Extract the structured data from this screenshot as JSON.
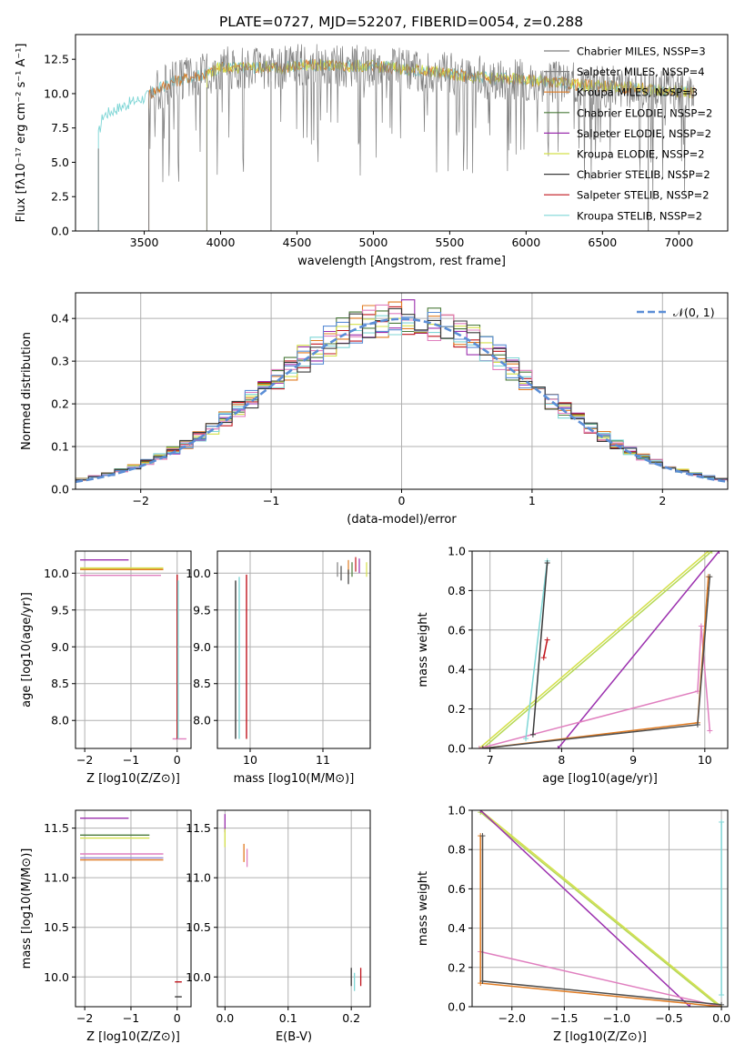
{
  "figure_title": "PLATE=0727, MJD=52207, FIBERID=0054, z=0.288",
  "colors": {
    "grid": "#b0b0b0",
    "series": [
      "#7f7f7f",
      "#4e4e4e",
      "#e07b22",
      "#4a7a3a",
      "#9b2fae",
      "#d4e04a",
      "#3a3a3a",
      "#c0141c",
      "#7fd6d6",
      "#e07fbf",
      "#b5d855",
      "#5b8ed6"
    ]
  },
  "chart_data": [
    {
      "id": "spectrum",
      "type": "line",
      "title": "PLATE=0727, MJD=52207, FIBERID=0054, z=0.288",
      "xlabel": "wavelength [Angstrom, rest frame]",
      "ylabel": "Flux [fλ10⁻¹⁷ erg cm⁻² s⁻¹ A⁻¹]",
      "xlim": [
        3050,
        7320
      ],
      "ylim": [
        0,
        14.3
      ],
      "xticks": [
        3500,
        4000,
        4500,
        5000,
        5500,
        6000,
        6500,
        7000
      ],
      "yticks": [
        0.0,
        2.5,
        5.0,
        7.5,
        10.0,
        12.5
      ],
      "grid": false,
      "legend": [
        "Chabrier MILES, NSSP=3",
        "Salpeter MILES, NSSP=4",
        "Kroupa MILES, NSSP=3",
        "Chabrier ELODIE, NSSP=2",
        "Salpeter ELODIE, NSSP=2",
        "Kroupa ELODIE, NSSP=2",
        "Chabrier STELIB, NSSP=2",
        "Salpeter STELIB, NSSP=2",
        "Kroupa STELIB, NSSP=2"
      ],
      "legend_colors": [
        "#7f7f7f",
        "#7f7f7f",
        "#e07b22",
        "#4a7a3a",
        "#9b2fae",
        "#d4e04a",
        "#3a3a3a",
        "#c0141c",
        "#7fd6d6"
      ],
      "legend_position": "right",
      "continuum": [
        [
          3200,
          7.0
        ],
        [
          3230,
          8.4
        ],
        [
          3300,
          8.8
        ],
        [
          3400,
          9.3
        ],
        [
          3500,
          9.7
        ],
        [
          3600,
          10.4
        ],
        [
          3700,
          10.9
        ],
        [
          3800,
          11.2
        ],
        [
          3900,
          11.4
        ],
        [
          4000,
          11.9
        ],
        [
          4200,
          11.9
        ],
        [
          4400,
          11.9
        ],
        [
          4600,
          12.1
        ],
        [
          4800,
          12.0
        ],
        [
          5000,
          12.0
        ],
        [
          5200,
          11.8
        ],
        [
          5400,
          11.6
        ],
        [
          5600,
          11.3
        ],
        [
          5800,
          11.1
        ],
        [
          6000,
          11.0
        ],
        [
          6200,
          10.8
        ],
        [
          6400,
          10.6
        ],
        [
          6600,
          10.5
        ],
        [
          6800,
          10.3
        ],
        [
          7100,
          10.1
        ]
      ],
      "dropouts": [
        [
          3200,
          0
        ],
        [
          3530,
          0
        ],
        [
          3910,
          0
        ],
        [
          4330,
          0
        ],
        [
          6800,
          0
        ]
      ]
    },
    {
      "id": "residuals",
      "type": "area",
      "xlabel": "(data-model)/error",
      "ylabel": "Normed distribution",
      "xlim": [
        -2.5,
        2.5
      ],
      "ylim": [
        0,
        0.46
      ],
      "xticks": [
        -2,
        -1,
        0,
        1,
        2
      ],
      "yticks": [
        0.0,
        0.1,
        0.2,
        0.3,
        0.4
      ],
      "grid": true,
      "legend": [
        "𝒩(0, 1)"
      ],
      "legend_position": "top-right",
      "gaussian": {
        "mean": 0,
        "sigma": 1
      }
    },
    {
      "id": "age-vs-Z",
      "type": "scatter",
      "xlabel": "Z [log10(Z/Z⊙)]",
      "ylabel": "age  [log10(age/yr)]",
      "xlim": [
        -2.2,
        0.3
      ],
      "ylim": [
        7.62,
        10.3
      ],
      "xticks": [
        -2,
        -1,
        0
      ],
      "yticks": [
        8.0,
        8.5,
        9.0,
        9.5,
        10.0
      ],
      "grid": true,
      "segments": [
        {
          "x1": -2.1,
          "x2": -1.05,
          "y": 10.18,
          "color": "#9b2fae"
        },
        {
          "x1": -2.1,
          "x2": -0.3,
          "y": 10.07,
          "color": "#d4e04a"
        },
        {
          "x1": -2.1,
          "x2": -0.3,
          "y": 10.05,
          "color": "#e07b22"
        },
        {
          "x1": -2.1,
          "x2": -0.35,
          "y": 9.97,
          "color": "#e07fbf"
        },
        {
          "x1": -0.1,
          "x2": 0.2,
          "y": 7.75,
          "color": "#e07fbf"
        }
      ],
      "vbars": [
        {
          "x": 0.0,
          "y1": 7.75,
          "y2": 9.98,
          "color": "#c0141c"
        },
        {
          "x": 0.02,
          "y1": 7.75,
          "y2": 9.9,
          "color": "#7fd6d6"
        }
      ]
    },
    {
      "id": "age-vs-mass",
      "type": "scatter",
      "xlabel": "mass [log10(M/M⊙)]",
      "ylabel": "",
      "xlim": [
        9.55,
        11.65
      ],
      "ylim": [
        7.62,
        10.3
      ],
      "xticks": [
        10,
        11
      ],
      "yticks": [
        8.0,
        8.5,
        9.0,
        9.5,
        10.0
      ],
      "grid": true,
      "vbars": [
        {
          "x": 9.8,
          "y1": 7.75,
          "y2": 9.9,
          "color": "#3a3a3a"
        },
        {
          "x": 9.85,
          "y1": 7.75,
          "y2": 9.95,
          "color": "#7fd6d6"
        },
        {
          "x": 9.95,
          "y1": 7.75,
          "y2": 9.98,
          "color": "#c0141c"
        }
      ],
      "cluster": [
        [
          11.2,
          10.05
        ],
        [
          11.25,
          10.0
        ],
        [
          11.35,
          10.08
        ],
        [
          11.4,
          10.05
        ],
        [
          11.5,
          10.1
        ],
        [
          11.6,
          10.05
        ],
        [
          11.35,
          9.95
        ],
        [
          11.45,
          10.12
        ]
      ]
    },
    {
      "id": "massweight-vs-age",
      "type": "line",
      "xlabel": "age  [log10(age/yr)]",
      "ylabel": "mass weight",
      "xlim": [
        6.75,
        10.32
      ],
      "ylim": [
        0,
        1.0
      ],
      "xticks": [
        7,
        8,
        9,
        10
      ],
      "yticks": [
        0.0,
        0.2,
        0.4,
        0.6,
        0.8,
        1.0
      ],
      "grid": true,
      "series": [
        {
          "color": "#d4e04a",
          "points": [
            [
              6.85,
              0.0
            ],
            [
              10.05,
              1.0
            ]
          ]
        },
        {
          "color": "#b5d855",
          "points": [
            [
              6.9,
              0.0
            ],
            [
              10.1,
              1.0
            ]
          ]
        },
        {
          "color": "#9b2fae",
          "points": [
            [
              7.95,
              0.0
            ],
            [
              10.2,
              1.0
            ]
          ]
        },
        {
          "color": "#e07fbf",
          "points": [
            [
              6.85,
              0.0
            ],
            [
              9.9,
              0.29
            ],
            [
              9.95,
              0.62
            ],
            [
              10.07,
              0.09
            ]
          ]
        },
        {
          "color": "#e07b22",
          "points": [
            [
              6.9,
              0.0
            ],
            [
              9.9,
              0.13
            ],
            [
              10.05,
              0.87
            ]
          ]
        },
        {
          "color": "#4e4e4e",
          "points": [
            [
              6.9,
              0.0
            ],
            [
              9.9,
              0.12
            ],
            [
              10.07,
              0.87
            ]
          ]
        },
        {
          "color": "#7fd6d6",
          "points": [
            [
              7.5,
              0.05
            ],
            [
              7.8,
              0.95
            ]
          ]
        },
        {
          "color": "#3a3a3a",
          "points": [
            [
              7.6,
              0.07
            ],
            [
              7.8,
              0.94
            ]
          ]
        },
        {
          "color": "#c0141c",
          "points": [
            [
              7.75,
              0.46
            ],
            [
              7.8,
              0.55
            ]
          ]
        }
      ]
    },
    {
      "id": "mass-vs-Z",
      "type": "scatter",
      "xlabel": "Z [log10(Z/Z⊙)]",
      "ylabel": "mass [log10(M/M⊙)]",
      "xlim": [
        -2.2,
        0.3
      ],
      "ylim": [
        9.7,
        11.68
      ],
      "xticks": [
        -2,
        -1,
        0
      ],
      "yticks": [
        10.0,
        10.5,
        11.0,
        11.5
      ],
      "grid": true,
      "segments": [
        {
          "x1": -2.1,
          "x2": -1.05,
          "y": 11.6,
          "color": "#9b2fae"
        },
        {
          "x1": -2.1,
          "x2": -0.6,
          "y": 11.43,
          "color": "#4a7a3a"
        },
        {
          "x1": -2.1,
          "x2": -0.6,
          "y": 11.4,
          "color": "#d4e04a"
        },
        {
          "x1": -2.1,
          "x2": -0.3,
          "y": 11.24,
          "color": "#e07fbf"
        },
        {
          "x1": -2.1,
          "x2": -0.3,
          "y": 11.2,
          "color": "#9b8fd6"
        },
        {
          "x1": -2.1,
          "x2": -0.3,
          "y": 11.18,
          "color": "#e07b22"
        },
        {
          "x1": -0.05,
          "x2": 0.1,
          "y": 9.95,
          "color": "#c0141c"
        },
        {
          "x1": -0.05,
          "x2": 0.1,
          "y": 9.8,
          "color": "#3a3a3a"
        }
      ]
    },
    {
      "id": "mass-vs-ebv",
      "type": "scatter",
      "xlabel": "E(B-V)",
      "ylabel": "",
      "xlim": [
        -0.012,
        0.23
      ],
      "ylim": [
        9.7,
        11.68
      ],
      "xticks": [
        0.0,
        0.1,
        0.2
      ],
      "yticks": [
        10.0,
        10.5,
        11.0,
        11.5
      ],
      "grid": true,
      "ticks": [
        [
          0.0,
          11.55,
          "#9b2fae"
        ],
        [
          0.0,
          11.4,
          "#d4e04a"
        ],
        [
          0.03,
          11.25,
          "#e07b22"
        ],
        [
          0.035,
          11.2,
          "#e07fbf"
        ],
        [
          0.2,
          10.0,
          "#3a3a3a"
        ],
        [
          0.205,
          9.95,
          "#7fd6d6"
        ],
        [
          0.215,
          10.0,
          "#c0141c"
        ]
      ]
    },
    {
      "id": "massweight-vs-Z",
      "type": "line",
      "xlabel": "Z [log10(Z/Z⊙)]",
      "ylabel": "mass weight",
      "xlim": [
        -2.38,
        0.06
      ],
      "ylim": [
        0,
        1.0
      ],
      "xticks": [
        -2.0,
        -1.5,
        -1.0,
        -0.5,
        0.0
      ],
      "yticks": [
        0.0,
        0.2,
        0.4,
        0.6,
        0.8,
        1.0
      ],
      "grid": true,
      "series": [
        {
          "color": "#d4e04a",
          "points": [
            [
              -2.3,
              1.0
            ],
            [
              0.0,
              0.0
            ]
          ]
        },
        {
          "color": "#b5d855",
          "points": [
            [
              -2.3,
              0.99
            ],
            [
              -0.02,
              0.0
            ]
          ]
        },
        {
          "color": "#9b2fae",
          "points": [
            [
              -2.3,
              1.0
            ],
            [
              -0.3,
              0.0
            ]
          ]
        },
        {
          "color": "#e07fbf",
          "points": [
            [
              -2.3,
              0.28
            ],
            [
              0.0,
              0.0
            ]
          ]
        },
        {
          "color": "#e07b22",
          "points": [
            [
              -2.3,
              0.87
            ],
            [
              -2.3,
              0.12
            ],
            [
              0.0,
              0.0
            ]
          ]
        },
        {
          "color": "#4e4e4e",
          "points": [
            [
              -2.28,
              0.87
            ],
            [
              -2.28,
              0.13
            ],
            [
              0.0,
              0.01
            ]
          ]
        },
        {
          "color": "#7fd6d6",
          "points": [
            [
              0.0,
              0.94
            ],
            [
              0.0,
              0.06
            ]
          ]
        }
      ]
    }
  ]
}
